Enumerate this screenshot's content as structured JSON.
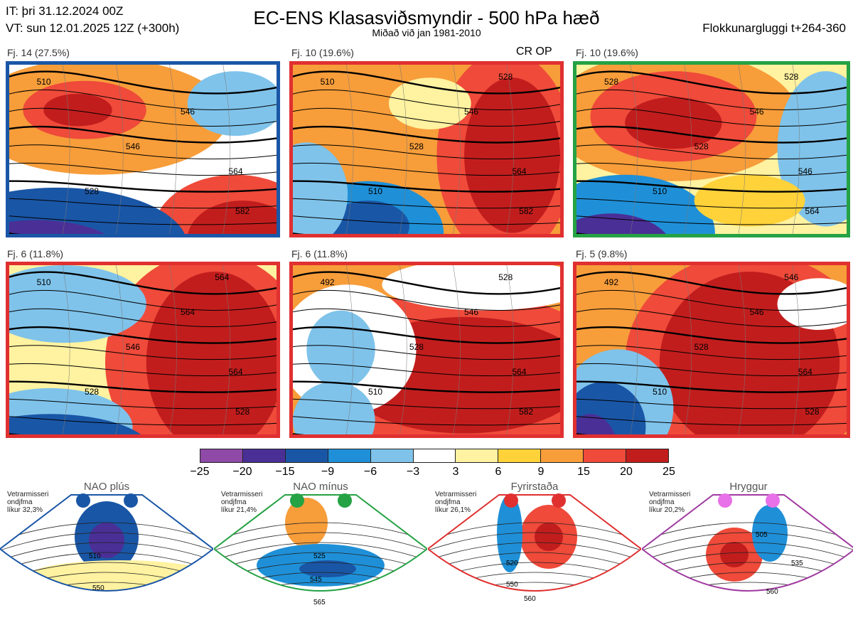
{
  "header": {
    "it": "IT: þri 31.12.2024 00Z",
    "vt": "VT: sun 12.01.2025 12Z  (+300h)",
    "title": "EC-ENS Klasasviðsmyndir - 500 hPa hæð",
    "subtitle": "Miðað við jan 1981-2010",
    "window": "Flokkunargluggi t+264-360",
    "cr_op": "CR OP"
  },
  "panels": [
    {
      "caption": "Fj. 14 (27.5%)",
      "border_color": "#1a56a6",
      "labels": [
        "510",
        "528",
        "546",
        "546",
        "564",
        "582"
      ]
    },
    {
      "caption": "Fj. 10 (19.6%)",
      "border_color": "#e03030",
      "labels": [
        "510",
        "510",
        "528",
        "546",
        "564",
        "582",
        "528"
      ]
    },
    {
      "caption": "Fj. 10 (19.6%)",
      "border_color": "#25a244",
      "labels": [
        "528",
        "510",
        "528",
        "546",
        "546",
        "564",
        "528"
      ]
    },
    {
      "caption": "Fj. 6 (11.8%)",
      "border_color": "#e03030",
      "labels": [
        "510",
        "528",
        "546",
        "564",
        "564",
        "528",
        "564"
      ]
    },
    {
      "caption": "Fj. 6 (11.8%)",
      "border_color": "#e03030",
      "labels": [
        "492",
        "510",
        "528",
        "546",
        "564",
        "582",
        "528"
      ]
    },
    {
      "caption": "Fj. 5 (9.8%)",
      "border_color": "#e03030",
      "labels": [
        "492",
        "510",
        "528",
        "546",
        "564",
        "528",
        "546"
      ]
    }
  ],
  "colorbar": {
    "colors": [
      "#8e4aa6",
      "#4a2f96",
      "#1a56a6",
      "#1f90d8",
      "#7fc3ea",
      "#ffffff",
      "#fff2a0",
      "#ffd23a",
      "#f79d3a",
      "#ef4a3a",
      "#c21d1d"
    ],
    "ticks": [
      "−25",
      "−20",
      "−15",
      "−9",
      "−6",
      "−3",
      "3",
      "6",
      "9",
      "15",
      "20",
      "25"
    ]
  },
  "regimes": [
    {
      "name": "NAO plús",
      "prob": [
        "Vetrarmisseri",
        "ondjfma",
        "líkur 32,3%"
      ],
      "color": "#1a56a6",
      "labels": [
        "510",
        "550"
      ]
    },
    {
      "name": "NAO mínus",
      "prob": [
        "Vetrarmisseri",
        "ondjfma",
        "líkur 21,4%"
      ],
      "color": "#25a244",
      "labels": [
        "525",
        "545",
        "565"
      ]
    },
    {
      "name": "Fyrirstaða",
      "prob": [
        "Vetrarmisseri",
        "ondjfma",
        "líkur 26,1%"
      ],
      "color": "#e03030",
      "labels": [
        "520",
        "550",
        "560"
      ]
    },
    {
      "name": "Hryggur",
      "prob": [
        "Vetrarmisseri",
        "ondjfma",
        "líkur 20,2%"
      ],
      "color": "#a03aa0",
      "labels": [
        "505",
        "535",
        "560"
      ]
    }
  ]
}
